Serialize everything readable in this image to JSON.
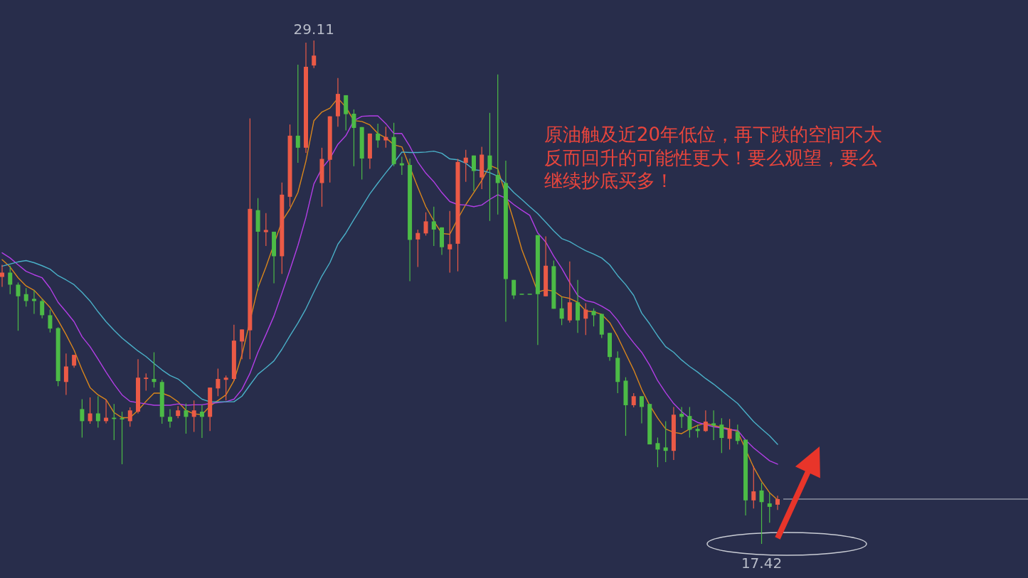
{
  "chart_data": {
    "type": "candlestick",
    "tick_labels": false,
    "categories": [
      null,
      null,
      null,
      null,
      null,
      null,
      null,
      null,
      null,
      null,
      null,
      null,
      null,
      null,
      null,
      null,
      null,
      null,
      null,
      null,
      null,
      null,
      null,
      null,
      null,
      null,
      null,
      null,
      null,
      null,
      null,
      null,
      null,
      null,
      null,
      null,
      null,
      null,
      null,
      null,
      null,
      null,
      null,
      null,
      null,
      null,
      null,
      null,
      null,
      null,
      null,
      null,
      null,
      null,
      null,
      null,
      null,
      null,
      null,
      null,
      null,
      null,
      null,
      null,
      null,
      null,
      null,
      null,
      null,
      null,
      null,
      null,
      null,
      null,
      null,
      null,
      null,
      null,
      null,
      null,
      null,
      null,
      null,
      null,
      null,
      null,
      null,
      null,
      null,
      null,
      null,
      null,
      null,
      null,
      null,
      null,
      null,
      null
    ],
    "ohlc": [
      [
        23.62,
        23.9,
        23.39,
        23.72
      ],
      [
        23.72,
        23.88,
        23.22,
        23.44
      ],
      [
        23.44,
        23.49,
        22.37,
        23.17
      ],
      [
        23.22,
        23.36,
        22.93,
        23.06
      ],
      [
        23.11,
        23.31,
        22.76,
        23.06
      ],
      [
        23.06,
        23.11,
        22.66,
        22.73
      ],
      [
        22.73,
        22.86,
        22.33,
        22.42
      ],
      [
        22.43,
        22.45,
        21.08,
        21.2
      ],
      [
        21.18,
        21.84,
        20.88,
        21.54
      ],
      [
        21.56,
        21.81,
        21.51,
        21.81
      ],
      [
        20.55,
        20.78,
        19.89,
        20.27
      ],
      [
        20.27,
        20.82,
        20.21,
        20.45
      ],
      [
        20.45,
        20.85,
        20.12,
        20.27
      ],
      [
        20.27,
        20.77,
        20.22,
        20.35
      ],
      [
        20.35,
        20.67,
        19.83,
        20.32
      ],
      [
        20.34,
        20.49,
        19.27,
        20.31
      ],
      [
        20.27,
        20.59,
        20.14,
        20.52
      ],
      [
        20.49,
        21.71,
        20.45,
        21.28
      ],
      [
        21.25,
        21.38,
        20.98,
        21.28
      ],
      [
        21.25,
        21.87,
        21.05,
        21.18
      ],
      [
        21.18,
        21.23,
        20.21,
        20.37
      ],
      [
        20.37,
        20.55,
        20.12,
        20.26
      ],
      [
        20.39,
        20.62,
        20.34,
        20.52
      ],
      [
        20.52,
        20.68,
        19.98,
        20.37
      ],
      [
        20.37,
        20.75,
        20.02,
        20.52
      ],
      [
        20.49,
        20.65,
        19.88,
        20.37
      ],
      [
        20.37,
        21.05,
        20.04,
        21.05
      ],
      [
        21.03,
        21.49,
        20.85,
        21.25
      ],
      [
        21.23,
        21.33,
        20.75,
        21.28
      ],
      [
        21.25,
        22.51,
        21.21,
        22.14
      ],
      [
        22.12,
        22.4,
        21.71,
        22.4
      ],
      [
        22.38,
        27.3,
        21.71,
        25.2
      ],
      [
        25.17,
        25.45,
        23.31,
        24.67
      ],
      [
        24.66,
        25.1,
        24.34,
        24.71
      ],
      [
        24.67,
        24.67,
        23.47,
        24.1
      ],
      [
        24.1,
        25.81,
        23.69,
        25.53
      ],
      [
        25.48,
        27.16,
        25.25,
        26.9
      ],
      [
        26.9,
        28.55,
        26.27,
        26.62
      ],
      [
        26.62,
        29.06,
        26.5,
        28.5
      ],
      [
        28.53,
        29.11,
        28.47,
        28.76
      ],
      [
        25.8,
        26.62,
        25.25,
        26.36
      ],
      [
        26.34,
        27.35,
        25.81,
        27.35
      ],
      [
        27.35,
        28.24,
        27.11,
        27.87
      ],
      [
        27.84,
        27.84,
        27.02,
        27.4
      ],
      [
        27.41,
        27.51,
        26.19,
        27.08
      ],
      [
        27.1,
        27.1,
        25.88,
        26.37
      ],
      [
        26.37,
        26.95,
        26.13,
        26.95
      ],
      [
        26.95,
        27.18,
        26.62,
        26.79
      ],
      [
        26.79,
        27.11,
        26.62,
        26.87
      ],
      [
        26.87,
        27.2,
        26.19,
        26.24
      ],
      [
        26.26,
        26.41,
        25.99,
        26.21
      ],
      [
        26.22,
        26.37,
        23.52,
        24.48
      ],
      [
        24.49,
        24.72,
        23.85,
        24.64
      ],
      [
        24.63,
        25.12,
        24.58,
        24.91
      ],
      [
        24.91,
        25.25,
        24.34,
        24.72
      ],
      [
        24.77,
        24.77,
        24.13,
        24.31
      ],
      [
        24.26,
        25.15,
        23.72,
        24.38
      ],
      [
        24.39,
        26.36,
        23.75,
        26.29
      ],
      [
        26.27,
        26.57,
        25.83,
        26.39
      ],
      [
        26.44,
        26.44,
        25.61,
        26.08
      ],
      [
        25.93,
        26.64,
        25.66,
        26.46
      ],
      [
        26.44,
        27.43,
        24.92,
        26.11
      ],
      [
        25.99,
        28.32,
        25.07,
        25.8
      ],
      [
        25.8,
        26.32,
        22.58,
        23.57
      ],
      [
        23.55,
        23.55,
        23.11,
        23.19
      ],
      [
        23.23,
        23.23,
        23.22,
        23.22
      ],
      [
        23.23,
        23.23,
        23.22,
        23.22
      ],
      [
        24.59,
        24.59,
        22.04,
        23.22
      ],
      [
        23.17,
        24.56,
        23.17,
        23.88
      ],
      [
        23.87,
        24.0,
        22.88,
        22.88
      ],
      [
        22.89,
        23.16,
        22.5,
        22.65
      ],
      [
        22.61,
        23.98,
        22.56,
        23.03
      ],
      [
        23.03,
        23.55,
        22.32,
        22.61
      ],
      [
        22.65,
        23.01,
        22.27,
        22.86
      ],
      [
        22.83,
        22.89,
        22.47,
        22.73
      ],
      [
        22.76,
        22.76,
        22.2,
        22.28
      ],
      [
        22.32,
        22.32,
        21.67,
        21.76
      ],
      [
        21.74,
        21.89,
        20.92,
        21.18
      ],
      [
        21.21,
        21.29,
        19.93,
        20.64
      ],
      [
        20.64,
        20.92,
        20.59,
        20.85
      ],
      [
        20.85,
        20.85,
        20.22,
        20.6
      ],
      [
        20.67,
        20.67,
        19.73,
        19.73
      ],
      [
        19.76,
        19.89,
        19.2,
        19.61
      ],
      [
        19.66,
        20.27,
        19.32,
        19.58
      ],
      [
        19.58,
        20.6,
        19.37,
        20.42
      ],
      [
        20.44,
        20.6,
        20.11,
        20.37
      ],
      [
        20.39,
        20.6,
        19.89,
        20.07
      ],
      [
        20.09,
        20.19,
        19.89,
        20.04
      ],
      [
        20.04,
        20.52,
        20.02,
        20.26
      ],
      [
        20.22,
        20.52,
        19.83,
        20.17
      ],
      [
        20.19,
        20.34,
        19.53,
        19.88
      ],
      [
        19.86,
        20.32,
        19.61,
        20.09
      ],
      [
        20.02,
        20.19,
        19.73,
        19.81
      ],
      [
        19.84,
        19.84,
        18.08,
        18.43
      ],
      [
        18.43,
        19.23,
        18.24,
        18.64
      ],
      [
        18.66,
        18.84,
        17.42,
        18.39
      ],
      [
        18.36,
        18.61,
        17.91,
        18.28
      ],
      [
        18.33,
        18.54,
        18.21,
        18.46
      ]
    ],
    "colors": [
      "#eb5a46",
      "#4cbb46",
      "#4cbb46",
      "#4cbb46",
      "#4cbb46",
      "#4cbb46",
      "#4cbb46",
      "#4cbb46",
      "#eb5a46",
      "#eb5a46",
      "#4cbb46",
      "#eb5a46",
      "#4cbb46",
      "#eb5a46",
      "#4cbb46",
      "#4cbb46",
      "#eb5a46",
      "#eb5a46",
      "#eb5a46",
      "#4cbb46",
      "#4cbb46",
      "#4cbb46",
      "#eb5a46",
      "#4cbb46",
      "#eb5a46",
      "#4cbb46",
      "#eb5a46",
      "#eb5a46",
      "#eb5a46",
      "#eb5a46",
      "#eb5a46",
      "#eb5a46",
      "#4cbb46",
      "#eb5a46",
      "#4cbb46",
      "#eb5a46",
      "#eb5a46",
      "#4cbb46",
      "#eb5a46",
      "#eb5a46",
      "#eb5a46",
      "#eb5a46",
      "#eb5a46",
      "#4cbb46",
      "#4cbb46",
      "#4cbb46",
      "#eb5a46",
      "#4cbb46",
      "#eb5a46",
      "#4cbb46",
      "#4cbb46",
      "#4cbb46",
      "#eb5a46",
      "#eb5a46",
      "#4cbb46",
      "#4cbb46",
      "#eb5a46",
      "#eb5a46",
      "#eb5a46",
      "#4cbb46",
      "#eb5a46",
      "#4cbb46",
      "#4cbb46",
      "#4cbb46",
      "#4cbb46",
      "#4cbb46",
      "#4cbb46",
      "#4cbb46",
      "#eb5a46",
      "#4cbb46",
      "#4cbb46",
      "#eb5a46",
      "#4cbb46",
      "#eb5a46",
      "#4cbb46",
      "#4cbb46",
      "#4cbb46",
      "#4cbb46",
      "#4cbb46",
      "#eb5a46",
      "#4cbb46",
      "#4cbb46",
      "#4cbb46",
      "#4cbb46",
      "#eb5a46",
      "#4cbb46",
      "#4cbb46",
      "#4cbb46",
      "#eb5a46",
      "#4cbb46",
      "#4cbb46",
      "#eb5a46",
      "#4cbb46",
      "#4cbb46",
      "#eb5a46",
      "#4cbb46",
      "#4cbb46",
      "#eb5a46"
    ],
    "series": [
      {
        "type": "line",
        "color": "#d9861c",
        "values": [
          24.02,
          23.85,
          23.6,
          23.41,
          23.31,
          23.11,
          22.91,
          22.61,
          22.28,
          21.92,
          21.46,
          21.05,
          20.88,
          20.77,
          20.47,
          20.35,
          20.35,
          20.52,
          20.73,
          20.92,
          20.92,
          20.85,
          20.72,
          20.52,
          20.44,
          20.42,
          20.62,
          20.75,
          20.88,
          21.21,
          21.81,
          null,
          23.37,
          23.85,
          null,
          24.91,
          25.2,
          25.58,
          26.31,
          27.25,
          27.45,
          27.54,
          27.77,
          27.56,
          27.25,
          27.23,
          27.15,
          26.95,
          26.85,
          26.69,
          26.64,
          null,
          25.7,
          25.25,
          24.92,
          24.63,
          24.61,
          24.97,
          25.3,
          25.58,
          25.86,
          26.21,
          26.13,
          null,
          24.92,
          24.26,
          23.77,
          23.27,
          23.32,
          23.29,
          23.16,
          23.12,
          23.03,
          22.83,
          22.81,
          22.75,
          22.56,
          22.23,
          21.84,
          21.46,
          21.01,
          20.64,
          20.34,
          20.09,
          20.01,
          19.98,
          20.09,
          20.17,
          20.22,
          20.17,
          null,
          20.09,
          20.03,
          null,
          19.2,
          18.87,
          18.61,
          18.44
        ]
      },
      {
        "type": "line",
        "color": "#b33ee6",
        "values": [
          24.18,
          24.06,
          23.9,
          23.75,
          23.67,
          23.6,
          23.36,
          23.03,
          22.81,
          22.58,
          22.23,
          22.0,
          21.71,
          21.41,
          21.13,
          20.88,
          20.73,
          20.7,
          20.67,
          20.64,
          20.64,
          20.64,
          20.67,
          20.64,
          20.65,
          20.65,
          20.68,
          20.7,
          20.72,
          20.78,
          21.01,
          21.38,
          21.87,
          22.28,
          22.71,
          23.24,
          23.78,
          24.35,
          25.0,
          25.78,
          26.14,
          26.37,
          26.7,
          26.9,
          27.25,
          27.35,
          27.36,
          27.36,
          27.18,
          26.95,
          26.95,
          26.65,
          26.29,
          26.03,
          25.83,
          25.58,
          25.37,
          25.3,
          25.29,
          25.25,
          25.29,
          25.42,
          25.53,
          25.45,
          25.3,
          25.17,
          25.05,
          24.64,
          24.43,
          24.1,
          23.82,
          23.49,
          23.19,
          23.07,
          23.03,
          22.94,
          22.83,
          22.61,
          22.33,
          22.09,
          21.87,
          21.57,
          21.21,
          20.93,
          20.68,
          20.49,
          20.34,
          20.24,
          20.19,
          20.14,
          20.11,
          20.07,
          20.06,
          19.83,
          19.65,
          19.5,
          19.35,
          19.27
        ]
      },
      {
        "type": "line",
        "color": "#4ab0c8",
        "values": [
          23.87,
          23.92,
          23.97,
          24.0,
          23.95,
          23.88,
          23.8,
          23.65,
          23.55,
          23.44,
          23.26,
          23.06,
          22.81,
          22.58,
          22.38,
          22.2,
          22.05,
          21.9,
          21.77,
          21.61,
          21.46,
          21.33,
          21.25,
          21.1,
          20.93,
          20.78,
          20.72,
          20.72,
          20.72,
          20.72,
          20.85,
          21.11,
          21.36,
          21.51,
          21.67,
          21.94,
          22.25,
          22.55,
          22.88,
          23.27,
          23.64,
          23.95,
          24.38,
          24.64,
          24.95,
          25.25,
          25.55,
          25.8,
          26.04,
          26.27,
          26.52,
          26.51,
          26.51,
          26.52,
          26.54,
          26.49,
          26.36,
          26.34,
          26.26,
          26.11,
          26.09,
          26.04,
          25.96,
          25.78,
          25.58,
          25.42,
          25.25,
          25.09,
          24.89,
          24.69,
          24.51,
          24.44,
          24.33,
          24.23,
          24.15,
          24.06,
          23.9,
          23.65,
          23.44,
          23.19,
          22.78,
          22.53,
          22.25,
          22.0,
          21.87,
          21.69,
          21.54,
          21.41,
          21.26,
          21.13,
          20.98,
          20.83,
          20.68,
          20.47,
          20.26,
          20.09,
          19.93,
          19.73
        ]
      }
    ],
    "annotations": [
      {
        "text": "29.11",
        "y": 29.11
      },
      {
        "text": "17.42",
        "y": 17.42
      },
      "原油触及近20年低位，再下跌的空间不大反而回升的可能性更大！要么观望，要么继续抄底买多！"
    ]
  }
}
